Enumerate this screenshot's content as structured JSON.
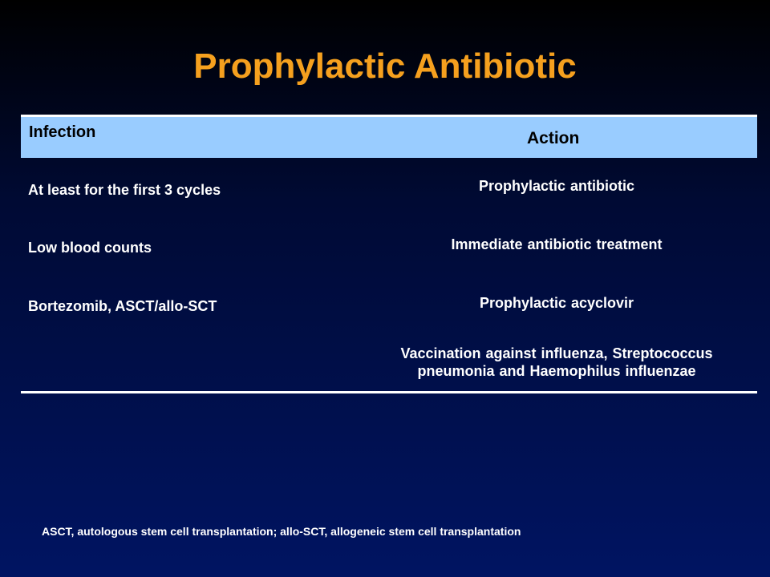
{
  "title": "Prophylactic Antibiotic",
  "table": {
    "headers": {
      "infection": "Infection",
      "action": "Action"
    },
    "rows": [
      {
        "infection": "At least for the first 3 cycles",
        "action": "Prophylactic antibiotic"
      },
      {
        "infection": "Low blood counts",
        "action": "Immediate antibiotic treatment"
      },
      {
        "infection": "Bortezomib, ASCT/allo-SCT",
        "action": "Prophylactic acyclovir"
      },
      {
        "infection": "",
        "action_line1": "Vaccination against influenza, Streptococcus",
        "action_line2": "pneumonia and Haemophilus influenzae"
      }
    ]
  },
  "footnote": "ASCT, autologous stem cell transplantation; allo-SCT, allogeneic stem cell transplantation",
  "colors": {
    "title": "#f5a01e",
    "header_bg": "#99ccff",
    "background_top": "#000000",
    "background_bottom": "#001462",
    "text": "#ffffff"
  }
}
